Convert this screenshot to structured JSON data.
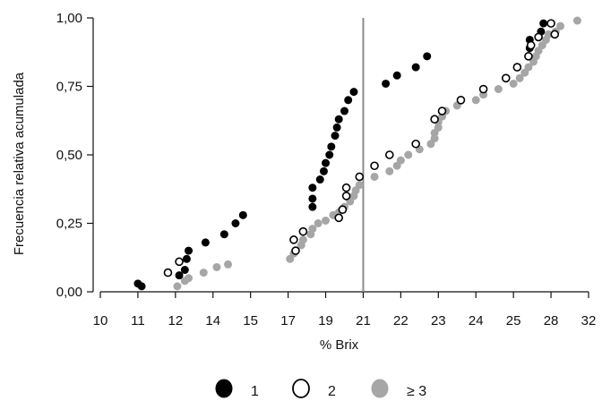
{
  "chart_data": {
    "type": "scatter",
    "xlabel": "% Brix",
    "ylabel": "Frecuencia relativa acumulada",
    "x_ticks": [
      "10",
      "11",
      "12",
      "14",
      "15",
      "17",
      "19",
      "21",
      "22",
      "23",
      "24",
      "25",
      "28",
      "32"
    ],
    "y_ticks": [
      "0,00",
      "0,25",
      "0,50",
      "0,75",
      "1,00"
    ],
    "ylim": [
      0,
      1
    ],
    "reference_line_x": 21,
    "grid": false,
    "legend_position": "bottom",
    "colors": {
      "s1": "#000000",
      "s2": "#ffffff",
      "s3": "#a6a6a6",
      "s2_stroke": "#000000",
      "axis": "#111111",
      "refline": "#8c8c8c"
    },
    "series": [
      {
        "name": "1",
        "points": [
          [
            11.0,
            0.03
          ],
          [
            11.1,
            0.02
          ],
          [
            12.2,
            0.06
          ],
          [
            12.5,
            0.08
          ],
          [
            12.6,
            0.12
          ],
          [
            12.7,
            0.15
          ],
          [
            13.6,
            0.18
          ],
          [
            14.3,
            0.21
          ],
          [
            14.6,
            0.25
          ],
          [
            14.8,
            0.28
          ],
          [
            18.3,
            0.31
          ],
          [
            18.3,
            0.34
          ],
          [
            18.3,
            0.38
          ],
          [
            18.7,
            0.41
          ],
          [
            18.9,
            0.44
          ],
          [
            19.0,
            0.47
          ],
          [
            19.2,
            0.5
          ],
          [
            19.3,
            0.53
          ],
          [
            19.5,
            0.57
          ],
          [
            19.6,
            0.6
          ],
          [
            19.7,
            0.63
          ],
          [
            20.0,
            0.66
          ],
          [
            20.2,
            0.7
          ],
          [
            20.5,
            0.73
          ],
          [
            21.6,
            0.76
          ],
          [
            21.9,
            0.79
          ],
          [
            22.4,
            0.82
          ],
          [
            22.7,
            0.86
          ],
          [
            26.3,
            0.89
          ],
          [
            26.3,
            0.92
          ],
          [
            27.2,
            0.95
          ],
          [
            27.4,
            0.98
          ]
        ]
      },
      {
        "name": "2",
        "points": [
          [
            11.8,
            0.07
          ],
          [
            12.2,
            0.11
          ],
          [
            17.4,
            0.15
          ],
          [
            17.3,
            0.19
          ],
          [
            17.8,
            0.22
          ],
          [
            19.7,
            0.27
          ],
          [
            19.9,
            0.3
          ],
          [
            20.1,
            0.35
          ],
          [
            20.1,
            0.38
          ],
          [
            20.8,
            0.42
          ],
          [
            21.3,
            0.46
          ],
          [
            21.7,
            0.5
          ],
          [
            22.4,
            0.54
          ],
          [
            22.9,
            0.63
          ],
          [
            23.1,
            0.66
          ],
          [
            23.6,
            0.7
          ],
          [
            24.2,
            0.74
          ],
          [
            24.8,
            0.78
          ],
          [
            25.3,
            0.82
          ],
          [
            26.2,
            0.86
          ],
          [
            26.4,
            0.9
          ],
          [
            27.0,
            0.93
          ],
          [
            28.4,
            0.94
          ],
          [
            28.0,
            0.98
          ]
        ]
      },
      {
        "name": "≥ 3",
        "points": [
          [
            12.1,
            0.02
          ],
          [
            12.5,
            0.04
          ],
          [
            12.7,
            0.05
          ],
          [
            13.5,
            0.07
          ],
          [
            14.1,
            0.09
          ],
          [
            14.4,
            0.1
          ],
          [
            17.1,
            0.12
          ],
          [
            17.3,
            0.14
          ],
          [
            17.7,
            0.17
          ],
          [
            17.8,
            0.19
          ],
          [
            18.2,
            0.21
          ],
          [
            18.3,
            0.23
          ],
          [
            18.6,
            0.25
          ],
          [
            19.0,
            0.26
          ],
          [
            19.4,
            0.28
          ],
          [
            19.7,
            0.29
          ],
          [
            20.0,
            0.31
          ],
          [
            20.3,
            0.33
          ],
          [
            20.5,
            0.35
          ],
          [
            20.6,
            0.37
          ],
          [
            20.8,
            0.39
          ],
          [
            21.3,
            0.42
          ],
          [
            21.7,
            0.44
          ],
          [
            21.9,
            0.46
          ],
          [
            22.0,
            0.48
          ],
          [
            22.2,
            0.5
          ],
          [
            22.5,
            0.52
          ],
          [
            22.8,
            0.54
          ],
          [
            22.9,
            0.56
          ],
          [
            22.9,
            0.58
          ],
          [
            23.0,
            0.6
          ],
          [
            23.0,
            0.62
          ],
          [
            23.1,
            0.64
          ],
          [
            23.2,
            0.66
          ],
          [
            23.5,
            0.68
          ],
          [
            24.0,
            0.7
          ],
          [
            24.2,
            0.72
          ],
          [
            24.6,
            0.74
          ],
          [
            25.0,
            0.76
          ],
          [
            25.5,
            0.78
          ],
          [
            25.9,
            0.8
          ],
          [
            26.2,
            0.82
          ],
          [
            26.6,
            0.84
          ],
          [
            26.8,
            0.86
          ],
          [
            27.0,
            0.88
          ],
          [
            27.3,
            0.9
          ],
          [
            27.6,
            0.92
          ],
          [
            27.8,
            0.94
          ],
          [
            28.5,
            0.95
          ],
          [
            29.0,
            0.97
          ],
          [
            30.8,
            0.99
          ]
        ]
      }
    ]
  }
}
